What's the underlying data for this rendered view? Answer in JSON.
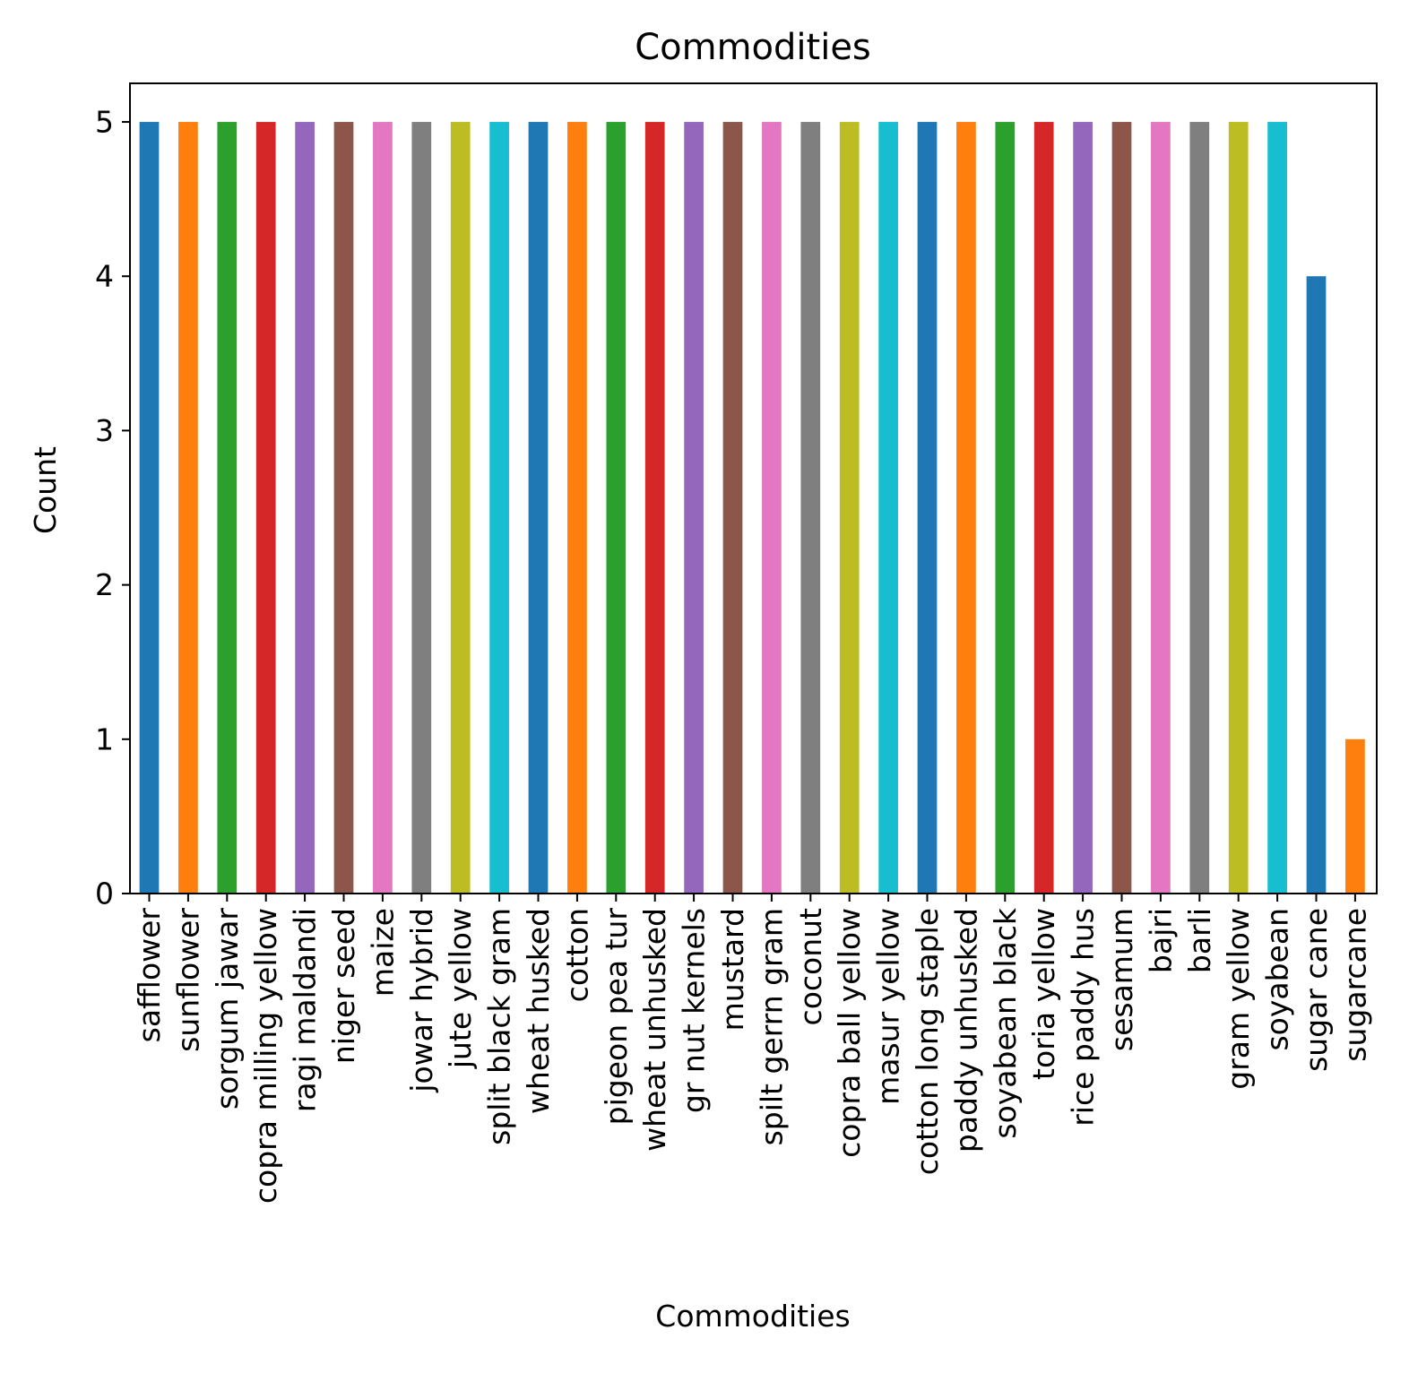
{
  "chart_data": {
    "type": "bar",
    "title": "Commodities",
    "xlabel": "Commodities",
    "ylabel": "Count",
    "ylim": [
      0,
      5.25
    ],
    "yticks": [
      0,
      1,
      2,
      3,
      4,
      5
    ],
    "grid": false,
    "categories": [
      "safflower",
      "sunflower",
      "sorgum jawar",
      "copra milling yellow",
      "ragi maldandi",
      "niger seed",
      "maize",
      "jowar hybrid",
      "jute yellow",
      "split black gram",
      "wheat husked",
      "cotton",
      "pigeon pea tur",
      "wheat unhusked",
      "gr nut kernels",
      "mustard",
      "spilt gerrn gram",
      "coconut",
      "copra ball yellow",
      "masur yellow",
      "cotton long staple",
      "paddy unhusked",
      "soyabean black",
      "toria yellow",
      "rice paddy hus",
      "sesamum",
      "bajri",
      "barli",
      "gram yellow",
      "soyabean",
      "sugar cane",
      "sugarcane"
    ],
    "values": [
      5,
      5,
      5,
      5,
      5,
      5,
      5,
      5,
      5,
      5,
      5,
      5,
      5,
      5,
      5,
      5,
      5,
      5,
      5,
      5,
      5,
      5,
      5,
      5,
      5,
      5,
      5,
      5,
      5,
      5,
      4,
      1
    ],
    "palette": [
      "#1f77b4",
      "#ff7f0e",
      "#2ca02c",
      "#d62728",
      "#9467bd",
      "#8c564b",
      "#e377c2",
      "#7f7f7f",
      "#bcbd22",
      "#17becf"
    ]
  }
}
